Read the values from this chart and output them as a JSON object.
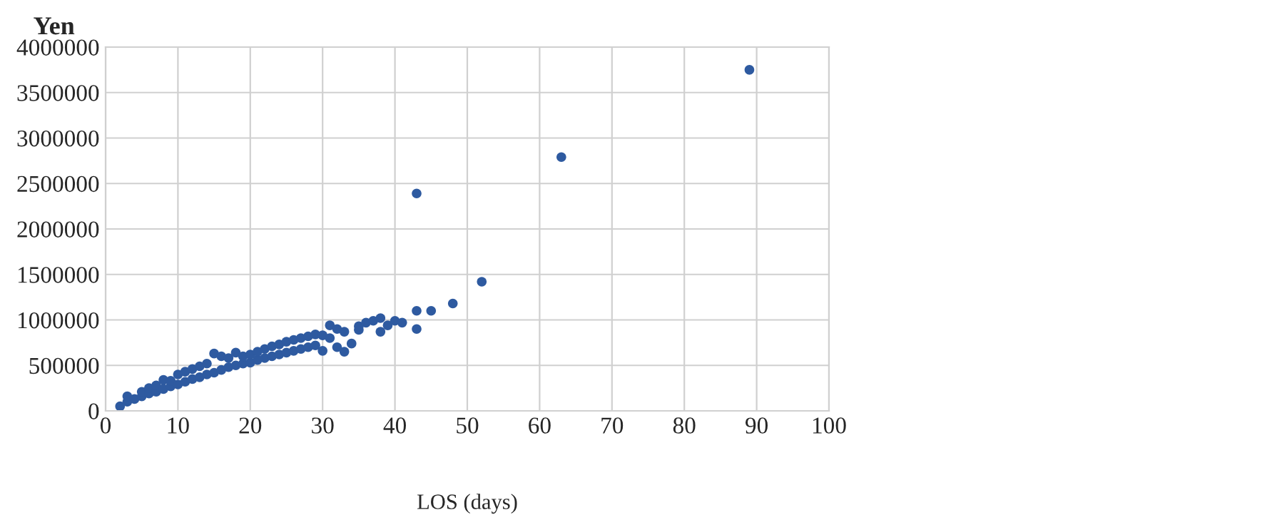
{
  "chart_data": {
    "type": "scatter",
    "ylabel": "Yen",
    "xlabel": "LOS (days)",
    "series": [
      {
        "color": "#2e5aa0",
        "x": [
          2,
          3,
          3,
          4,
          5,
          5,
          6,
          6,
          7,
          7,
          8,
          8,
          9,
          9,
          10,
          10,
          11,
          11,
          12,
          12,
          13,
          13,
          14,
          14,
          15,
          15,
          16,
          16,
          17,
          17,
          18,
          18,
          19,
          19,
          20,
          20,
          21,
          21,
          22,
          22,
          23,
          23,
          24,
          24,
          25,
          25,
          26,
          26,
          27,
          27,
          28,
          28,
          29,
          29,
          30,
          30,
          31,
          31,
          32,
          32,
          33,
          33,
          34,
          35,
          35,
          36,
          37,
          38,
          38,
          39,
          40,
          41,
          43,
          43,
          43,
          45,
          48,
          52,
          63,
          89
        ],
        "values": [
          50000,
          100000,
          160000,
          130000,
          160000,
          210000,
          190000,
          250000,
          210000,
          280000,
          240000,
          340000,
          270000,
          330000,
          290000,
          400000,
          320000,
          430000,
          350000,
          460000,
          370000,
          490000,
          400000,
          520000,
          420000,
          630000,
          450000,
          600000,
          480000,
          580000,
          500000,
          640000,
          520000,
          600000,
          530000,
          620000,
          560000,
          650000,
          580000,
          680000,
          600000,
          710000,
          620000,
          730000,
          640000,
          760000,
          660000,
          780000,
          680000,
          800000,
          700000,
          820000,
          720000,
          840000,
          660000,
          830000,
          800000,
          940000,
          700000,
          900000,
          650000,
          870000,
          740000,
          890000,
          930000,
          970000,
          990000,
          870000,
          1020000,
          940000,
          990000,
          970000,
          900000,
          1100000,
          2390000,
          1100000,
          1180000,
          1420000,
          2790000,
          3750000
        ]
      }
    ],
    "marker": "circle",
    "xlim": [
      0,
      100
    ],
    "xticks": [
      0,
      10,
      20,
      30,
      40,
      50,
      60,
      70,
      80,
      90,
      100
    ],
    "ylim": [
      0,
      4000000
    ],
    "yticks": [
      0,
      500000,
      1000000,
      1500000,
      2000000,
      2500000,
      3000000,
      3500000,
      4000000
    ],
    "grid": true,
    "legend": false
  }
}
